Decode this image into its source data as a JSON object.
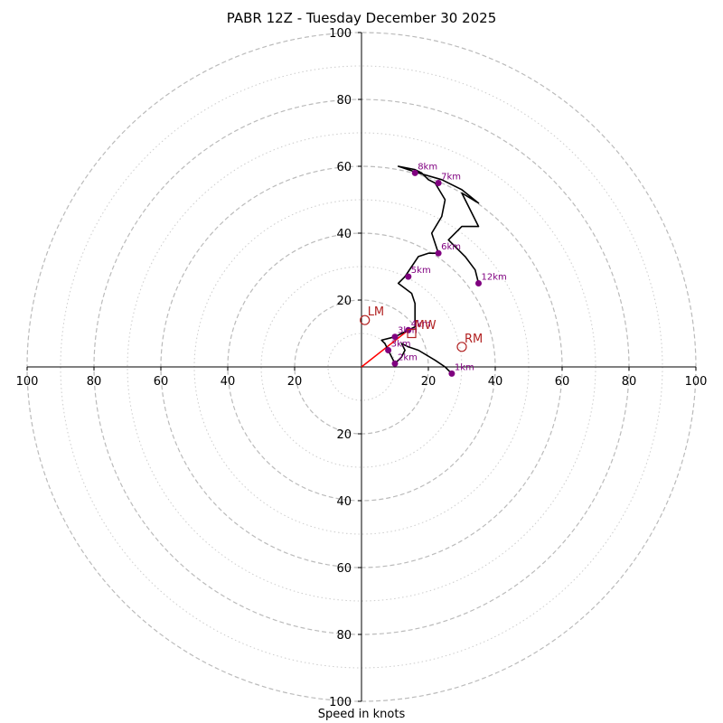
{
  "chart_data": {
    "type": "hodograph",
    "title": "PABR 12Z - Tuesday December 30 2025",
    "xlabel": "Speed in knots",
    "speed_range": [
      0,
      100
    ],
    "ring_ticks": [
      20,
      40,
      60,
      80,
      100
    ],
    "dotted_rings": [
      10,
      30,
      50,
      70,
      90
    ],
    "axis_tick_labels": [
      "100",
      "80",
      "60",
      "40",
      "20",
      "20",
      "40",
      "60",
      "80",
      "100"
    ],
    "trace": [
      [
        27,
        -2
      ],
      [
        25,
        0
      ],
      [
        22,
        2
      ],
      [
        17,
        5
      ],
      [
        14,
        6
      ],
      [
        12,
        7
      ],
      [
        13,
        5
      ],
      [
        12,
        3
      ],
      [
        10,
        1
      ],
      [
        9,
        3
      ],
      [
        8,
        5
      ],
      [
        7,
        7
      ],
      [
        6,
        8
      ],
      [
        10,
        9
      ],
      [
        12,
        10
      ],
      [
        14,
        11
      ],
      [
        16,
        12
      ],
      [
        16,
        15
      ],
      [
        16,
        19
      ],
      [
        15,
        22
      ],
      [
        11,
        25
      ],
      [
        13,
        27
      ],
      [
        15,
        30
      ],
      [
        17,
        33
      ],
      [
        20,
        34
      ],
      [
        23,
        34
      ],
      [
        21,
        40
      ],
      [
        24,
        45
      ],
      [
        25,
        50
      ],
      [
        22,
        55
      ],
      [
        20,
        56
      ],
      [
        18,
        58
      ],
      [
        16,
        59
      ],
      [
        11,
        60
      ],
      [
        17,
        58
      ],
      [
        24,
        56
      ],
      [
        30,
        53
      ],
      [
        35,
        49
      ],
      [
        30,
        52
      ],
      [
        32,
        48
      ],
      [
        35,
        42
      ],
      [
        30,
        42
      ],
      [
        26,
        38
      ],
      [
        31,
        33
      ],
      [
        34,
        29
      ],
      [
        35,
        25
      ]
    ],
    "height_points": [
      {
        "label": "1km",
        "u": 27,
        "v": -2
      },
      {
        "label": "2km",
        "u": 10,
        "v": 1
      },
      {
        "label": "3km",
        "u": 8,
        "v": 5
      },
      {
        "label": "3km",
        "u": 10,
        "v": 9
      },
      {
        "label": "4km",
        "u": 14,
        "v": 11
      },
      {
        "label": "5km",
        "u": 14,
        "v": 27
      },
      {
        "label": "6km",
        "u": 23,
        "v": 34
      },
      {
        "label": "7km",
        "u": 23,
        "v": 55
      },
      {
        "label": "8km",
        "u": 16,
        "v": 58
      },
      {
        "label": "12km",
        "u": 35,
        "v": 25
      }
    ],
    "storm_motion": {
      "vector": [
        14,
        11
      ],
      "markers": [
        {
          "label": "LM",
          "u": 1,
          "v": 14,
          "shape": "circle"
        },
        {
          "label": "MW",
          "u": 15,
          "v": 10,
          "shape": "square"
        },
        {
          "label": "RM",
          "u": 30,
          "v": 6,
          "shape": "circle"
        }
      ]
    },
    "colors": {
      "trace": "#000000",
      "points": "#800080",
      "storm": "#b22222",
      "vector": "#ff0000",
      "grid": "#bbbbbb",
      "axes": "#000000"
    }
  }
}
